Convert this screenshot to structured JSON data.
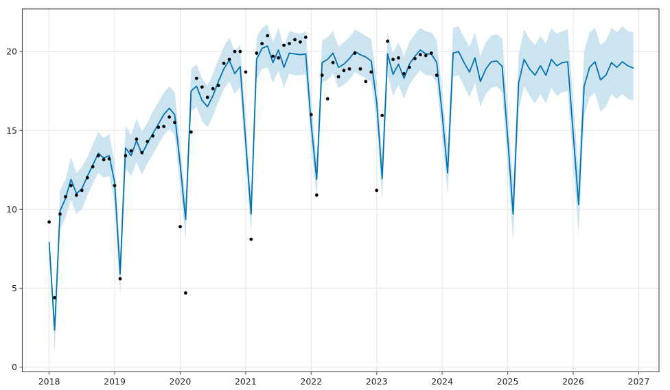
{
  "chart_data": {
    "type": "line",
    "title": "",
    "xlabel": "",
    "ylabel": "",
    "legend": false,
    "grid": true,
    "x_unit": "monthly starting 2018-01",
    "observed_range": "2018-01 to 2023-12",
    "forecast_range": "2018-01 to 2026-12",
    "xlim_years": [
      2017.59,
      2027.31
    ],
    "ylim": [
      -0.3,
      22.7
    ],
    "x_ticks": [
      2018,
      2019,
      2020,
      2021,
      2022,
      2023,
      2024,
      2025,
      2026,
      2027
    ],
    "x_tick_labels": [
      "2018",
      "2019",
      "2020",
      "2021",
      "2022",
      "2023",
      "2024",
      "2025",
      "2026",
      "2027"
    ],
    "y_ticks": [
      0,
      5,
      10,
      15,
      20
    ],
    "y_tick_labels": [
      "0",
      "5",
      "10",
      "15",
      "20"
    ],
    "colors": {
      "forecast_line": "#0072b2",
      "uncertainty_band": "#cce3f0",
      "observed_points": "#000000",
      "grid": "#e4e4e4",
      "spine": "#454545",
      "tick_label": "#262626",
      "background": "#ffffff"
    },
    "series": [
      {
        "name": "uncertainty-band",
        "type": "band",
        "upper": [
          8.3,
          3.0,
          11.2,
          11.9,
          13.3,
          12.3,
          12.7,
          13.3,
          14.1,
          14.9,
          14.5,
          14.8,
          13.0,
          7.2,
          15.3,
          14.7,
          15.75,
          14.9,
          15.5,
          16.2,
          16.8,
          17.4,
          17.8,
          17.4,
          14.1,
          10.6,
          18.9,
          19.2,
          18.3,
          17.8,
          18.6,
          19.5,
          20.3,
          20.9,
          20.0,
          20.45,
          15.6,
          11.0,
          20.9,
          21.5,
          21.7,
          20.6,
          21.5,
          20.3,
          21.3,
          21.2,
          21.1,
          21.3,
          16.8,
          13.2,
          20.7,
          20.9,
          21.3,
          20.3,
          20.6,
          20.9,
          21.4,
          21.2,
          21.0,
          20.8,
          18.2,
          13.3,
          21.2,
          19.9,
          20.6,
          19.7,
          20.6,
          21.1,
          21.5,
          21.3,
          21.2,
          20.7,
          17.5,
          13.9,
          21.5,
          21.6,
          20.9,
          20.3,
          21.2,
          19.7,
          20.6,
          21.0,
          21.1,
          20.8,
          16.3,
          11.5,
          19.8,
          21.4,
          20.8,
          20.4,
          21.0,
          20.5,
          21.5,
          21.1,
          21.3,
          21.4,
          16.9,
          12.4,
          20.0,
          21.2,
          21.5,
          20.4,
          20.7,
          21.5,
          21.2,
          21.6,
          21.3,
          21.2
        ],
        "lower": [
          7.5,
          0.9,
          8.7,
          9.5,
          10.6,
          9.7,
          10.0,
          10.9,
          11.6,
          12.3,
          12.0,
          12.1,
          10.4,
          4.6,
          12.6,
          12.1,
          13.0,
          12.2,
          12.9,
          13.5,
          14.1,
          14.7,
          15.1,
          14.7,
          11.5,
          8.1,
          16.2,
          16.5,
          15.6,
          15.2,
          15.9,
          16.8,
          17.6,
          18.1,
          17.3,
          17.75,
          13.0,
          8.4,
          18.2,
          18.9,
          19.0,
          18.0,
          18.8,
          17.7,
          18.6,
          18.5,
          18.5,
          18.55,
          14.1,
          10.6,
          18.0,
          18.2,
          18.6,
          17.7,
          17.9,
          18.2,
          18.7,
          18.5,
          18.3,
          18.1,
          15.5,
          10.65,
          18.5,
          17.2,
          17.9,
          17.0,
          17.9,
          18.4,
          18.8,
          18.5,
          18.5,
          18.0,
          14.6,
          10.9,
          18.4,
          18.5,
          17.8,
          17.1,
          18.0,
          16.5,
          17.3,
          17.7,
          17.8,
          17.4,
          12.8,
          8.0,
          16.3,
          17.8,
          17.2,
          16.7,
          17.3,
          16.7,
          17.7,
          17.2,
          17.4,
          17.5,
          12.9,
          8.4,
          15.9,
          17.1,
          17.4,
          16.2,
          16.5,
          17.3,
          17.0,
          17.3,
          17.0,
          16.9
        ]
      },
      {
        "name": "forecast-line",
        "type": "line",
        "values": [
          7.9,
          2.35,
          9.9,
          10.7,
          11.9,
          11.0,
          11.3,
          12.1,
          12.8,
          13.55,
          13.25,
          13.4,
          11.7,
          5.9,
          13.9,
          13.4,
          14.35,
          13.5,
          14.2,
          14.8,
          15.4,
          16.0,
          16.4,
          16.0,
          12.8,
          9.35,
          17.5,
          17.8,
          16.9,
          16.5,
          17.2,
          18.1,
          18.9,
          19.45,
          18.6,
          19.05,
          14.3,
          9.7,
          19.5,
          20.2,
          20.35,
          19.3,
          20.1,
          19.0,
          19.9,
          19.85,
          19.8,
          19.85,
          15.4,
          11.9,
          19.3,
          19.5,
          19.9,
          19.0,
          19.2,
          19.55,
          20.0,
          19.8,
          19.65,
          19.4,
          16.8,
          11.95,
          19.85,
          18.55,
          19.2,
          18.3,
          19.2,
          19.7,
          20.1,
          19.85,
          19.85,
          19.3,
          16.0,
          12.3,
          19.9,
          20.0,
          19.3,
          18.7,
          19.6,
          18.1,
          18.9,
          19.35,
          19.4,
          19.05,
          14.5,
          9.7,
          18.0,
          19.5,
          18.9,
          18.5,
          19.1,
          18.5,
          19.5,
          19.1,
          19.3,
          19.35,
          14.8,
          10.3,
          17.8,
          19.0,
          19.35,
          18.2,
          18.5,
          19.3,
          19.0,
          19.35,
          19.1,
          18.95
        ]
      },
      {
        "name": "observed-points",
        "type": "scatter",
        "values": [
          9.2,
          4.4,
          9.7,
          10.8,
          11.5,
          10.9,
          11.2,
          12.0,
          12.7,
          13.4,
          13.15,
          13.2,
          11.5,
          5.6,
          13.4,
          13.7,
          14.45,
          13.6,
          14.3,
          14.65,
          15.2,
          15.25,
          15.85,
          15.5,
          8.9,
          4.7,
          14.9,
          18.3,
          17.75,
          17.1,
          17.65,
          17.85,
          19.25,
          19.5,
          20.0,
          20.0,
          18.7,
          8.1,
          19.9,
          20.5,
          21.0,
          19.7,
          19.6,
          20.4,
          20.5,
          20.75,
          20.6,
          20.9,
          16.0,
          10.9,
          18.5,
          17.0,
          19.3,
          18.4,
          18.8,
          18.9,
          19.9,
          18.9,
          18.1,
          18.7,
          11.2,
          15.95,
          20.65,
          19.5,
          19.6,
          18.6,
          19.0,
          19.55,
          19.8,
          19.75,
          19.9,
          18.5
        ]
      }
    ]
  }
}
